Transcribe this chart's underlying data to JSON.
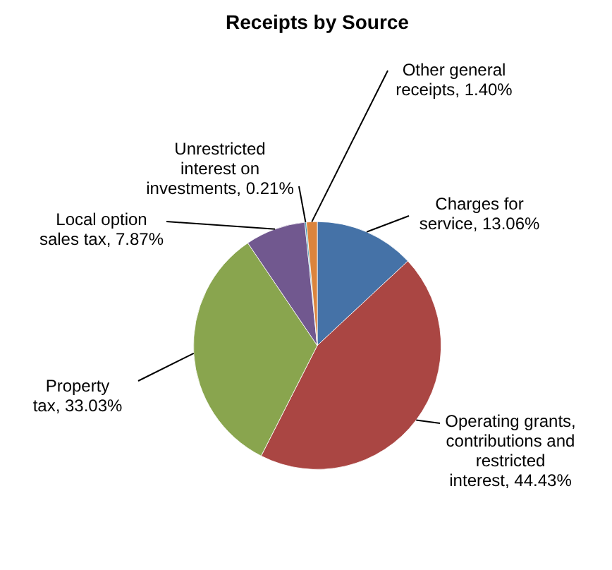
{
  "chart_data": {
    "type": "pie",
    "title": "Receipts by Source",
    "categories": [
      "Charges for service",
      "Operating grants, contributions and restricted interest",
      "Property tax",
      "Local option sales tax",
      "Unrestricted interest on investments",
      "Other general receipts"
    ],
    "values": [
      13.06,
      44.43,
      33.03,
      7.87,
      0.21,
      1.4
    ],
    "value_labels": [
      "13.06%",
      "44.43%",
      "33.03%",
      "7.87%",
      "0.21%",
      "1.40%"
    ],
    "colors": [
      "#4572a7",
      "#aa4643",
      "#89a54e",
      "#71588f",
      "#4198af",
      "#db843d"
    ],
    "legend": false
  }
}
